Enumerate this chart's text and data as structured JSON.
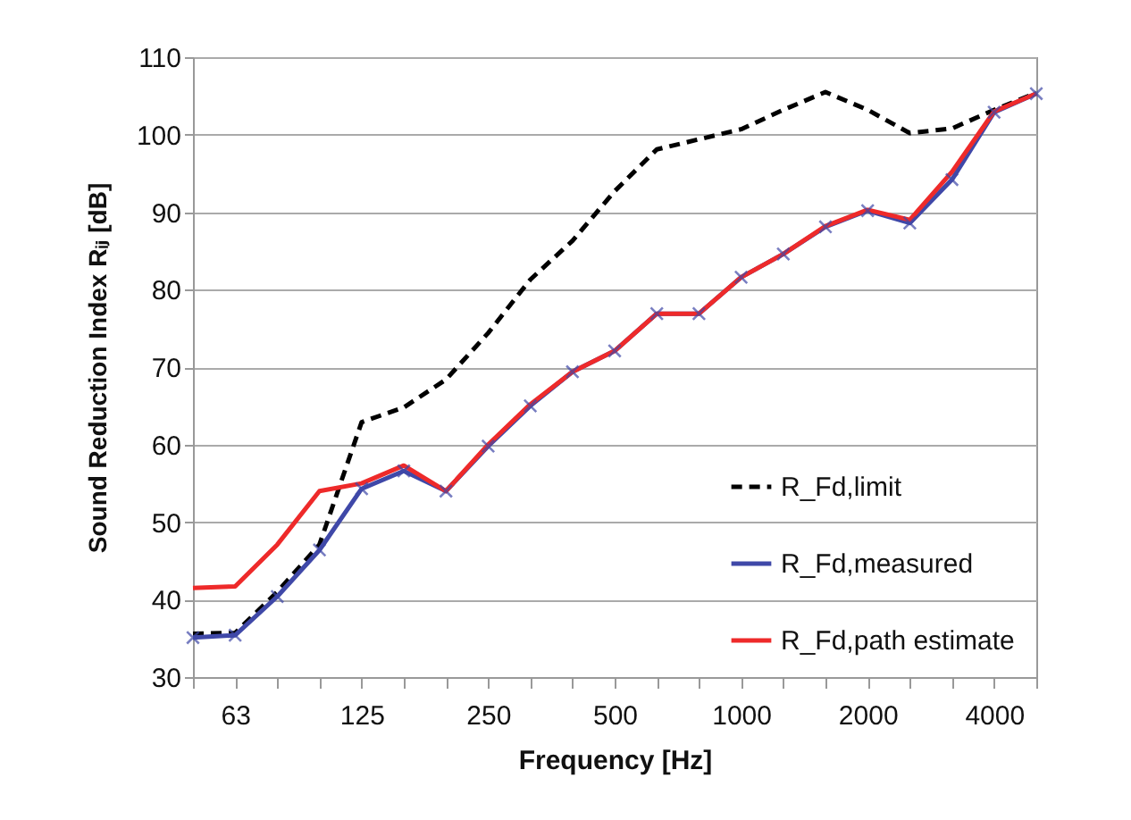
{
  "chart_data": {
    "type": "line",
    "xlabel": "Frequency [Hz]",
    "ylabel": "Sound Reduction Index Rᵢⱼ [dB]",
    "categories": [
      null,
      "63",
      null,
      null,
      "125",
      null,
      null,
      "250",
      null,
      null,
      "500",
      null,
      null,
      "1000",
      null,
      null,
      "2000",
      null,
      null,
      "4000",
      null
    ],
    "ylim": [
      30,
      110
    ],
    "yticks": [
      30,
      40,
      50,
      60,
      70,
      80,
      90,
      100,
      110
    ],
    "grid": "y",
    "legend": "bottom right",
    "series": [
      {
        "name": "R_Fd,limit",
        "color": "#000000",
        "line_style": "dashed",
        "marker": "none",
        "values": [
          35.6,
          35.7,
          41.0,
          47.1,
          62.9,
          64.8,
          68.4,
          74.4,
          81.3,
          86.3,
          92.7,
          98.1,
          99.4,
          100.7,
          103.2,
          105.5,
          103.2,
          100.2,
          100.8,
          103.2,
          105.4
        ]
      },
      {
        "name": "R_Fd,measured",
        "color": "#3f48a8",
        "line_style": "solid",
        "marker": "cross",
        "values": [
          35.1,
          35.4,
          40.4,
          46.4,
          54.3,
          56.6,
          54.0,
          59.8,
          65.0,
          69.4,
          72.1,
          76.9,
          76.9,
          81.6,
          84.6,
          88.1,
          90.2,
          88.6,
          94.2,
          102.9,
          105.3
        ]
      },
      {
        "name": "R_Fd,path estimate",
        "color": "#ee2a2a",
        "line_style": "solid",
        "marker": "none",
        "values": [
          41.5,
          41.7,
          47.1,
          54.0,
          55.0,
          57.3,
          54.0,
          60.0,
          65.2,
          69.4,
          72.1,
          76.9,
          76.9,
          81.6,
          84.6,
          88.2,
          90.3,
          89.0,
          95.2,
          103.0,
          105.3
        ]
      }
    ]
  }
}
